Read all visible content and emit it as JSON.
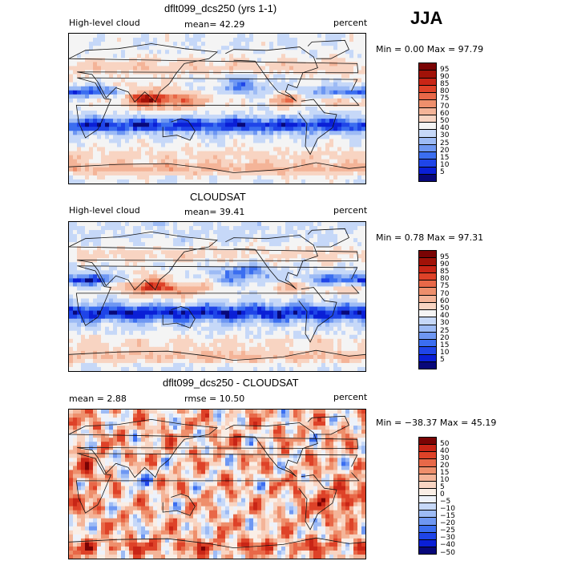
{
  "season": "JJA",
  "palette_main": [
    "#08087a",
    "#0a1fd6",
    "#1f45e8",
    "#3b6ef0",
    "#6e97f2",
    "#9dbbf5",
    "#c6d8f8",
    "#f4f4f4",
    "#f8d4c2",
    "#f4b498",
    "#ee8f6c",
    "#e86848",
    "#de4228",
    "#c82516",
    "#a11208",
    "#7a0404"
  ],
  "palette_diff": [
    "#08087a",
    "#0a1fd6",
    "#1f45e8",
    "#3b6ef0",
    "#6e97f2",
    "#9dbbf5",
    "#c6d8f8",
    "#eef2fa",
    "#faeee6",
    "#f8d4c2",
    "#f4b498",
    "#ee8f6c",
    "#e86848",
    "#de4228",
    "#c82516",
    "#7a0404"
  ],
  "panels": [
    {
      "title": "dflt099_dcs250 (yrs 1-1)",
      "left_label": "High-level cloud",
      "center_label": "mean=  42.29",
      "right_label": "percent",
      "minmax": "Min =    0.00 Max =   97.79",
      "colorbar_labels": [
        "95",
        "90",
        "85",
        "80",
        "75",
        "70",
        "60",
        "50",
        "40",
        "30",
        "25",
        "20",
        "15",
        "10",
        "5"
      ]
    },
    {
      "title": "CLOUDSAT",
      "left_label": "High-level cloud",
      "center_label": "mean=  39.41",
      "right_label": "percent",
      "minmax": "Min =    0.78 Max =   97.31",
      "colorbar_labels": [
        "95",
        "90",
        "85",
        "80",
        "75",
        "70",
        "60",
        "50",
        "40",
        "30",
        "25",
        "20",
        "15",
        "10",
        "5"
      ]
    },
    {
      "title": "dflt099_dcs250 - CLOUDSAT",
      "left_label": "mean =    2.88",
      "center_label": "rmse =   10.50",
      "right_label": "percent",
      "minmax": "Min = −38.37 Max =   45.19",
      "colorbar_labels": [
        "50",
        "40",
        "30",
        "20",
        "15",
        "10",
        "5",
        "0",
        "−5",
        "−10",
        "−15",
        "−20",
        "−25",
        "−30",
        "−40",
        "−50"
      ]
    }
  ],
  "chart_data": [
    {
      "type": "heatmap",
      "title": "dflt099_dcs250 (yrs 1-1)",
      "variable": "High-level cloud",
      "units": "percent",
      "mean": 42.29,
      "min": 0.0,
      "max": 97.79,
      "colorbar_levels": [
        5,
        10,
        15,
        20,
        25,
        30,
        40,
        50,
        60,
        70,
        75,
        80,
        85,
        90,
        95
      ]
    },
    {
      "type": "heatmap",
      "title": "CLOUDSAT",
      "variable": "High-level cloud",
      "units": "percent",
      "mean": 39.41,
      "min": 0.78,
      "max": 97.31,
      "colorbar_levels": [
        5,
        10,
        15,
        20,
        25,
        30,
        40,
        50,
        60,
        70,
        75,
        80,
        85,
        90,
        95
      ]
    },
    {
      "type": "heatmap",
      "title": "dflt099_dcs250 - CLOUDSAT",
      "units": "percent",
      "mean": 2.88,
      "rmse": 10.5,
      "min": -38.37,
      "max": 45.19,
      "colorbar_levels": [
        -50,
        -40,
        -30,
        -25,
        -20,
        -15,
        -10,
        -5,
        0,
        5,
        10,
        15,
        20,
        30,
        40,
        50
      ]
    }
  ]
}
